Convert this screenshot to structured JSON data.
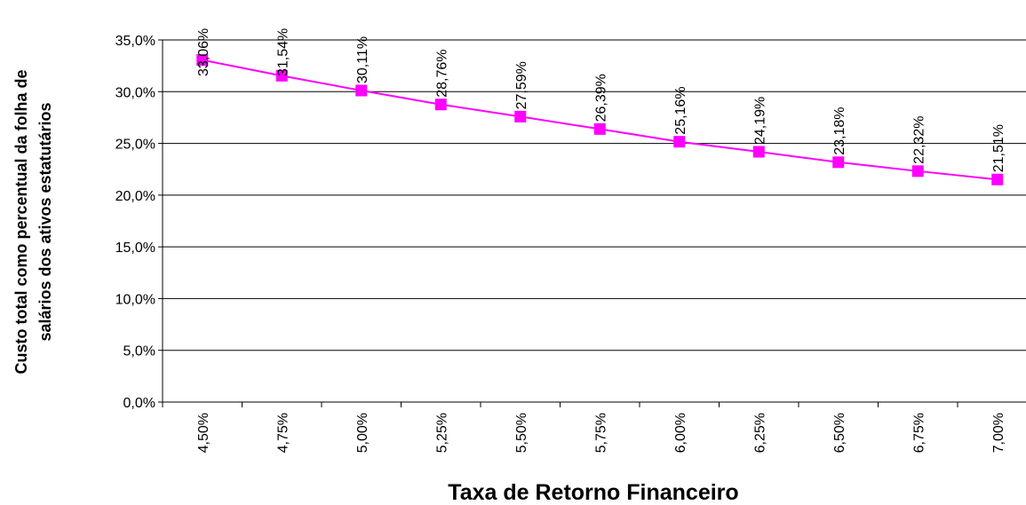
{
  "chart_data": {
    "type": "line",
    "x_label": "Taxa de Retorno Financeiro",
    "y_label": [
      "Custo total como percentual da folha de",
      "salários dos ativos estatutários"
    ],
    "categories": [
      "4,50%",
      "4,75%",
      "5,00%",
      "5,25%",
      "5,50%",
      "5,75%",
      "6,00%",
      "6,25%",
      "6,50%",
      "6,75%",
      "7,00%"
    ],
    "series": [
      {
        "color": "#ff00ff",
        "values": [
          33.06,
          31.54,
          30.11,
          28.76,
          27.59,
          26.39,
          25.16,
          24.19,
          23.18,
          22.32,
          21.51
        ],
        "value_labels": [
          "33,06%",
          "31,54%",
          "30,11%",
          "28,76%",
          "27,59%",
          "26,39%",
          "25,16%",
          "24,19%",
          "23,18%",
          "22,32%",
          "21,51%"
        ]
      }
    ],
    "ylim": [
      0,
      35
    ],
    "yticks": [
      {
        "value": 0,
        "label": "0,0%"
      },
      {
        "value": 5,
        "label": "5,0%"
      },
      {
        "value": 10,
        "label": "10,0%"
      },
      {
        "value": 15,
        "label": "15,0%"
      },
      {
        "value": 20,
        "label": "20,0%"
      },
      {
        "value": 25,
        "label": "25,0%"
      },
      {
        "value": 30,
        "label": "30,0%"
      },
      {
        "value": 35,
        "label": "35,0%"
      }
    ],
    "grid": true
  }
}
